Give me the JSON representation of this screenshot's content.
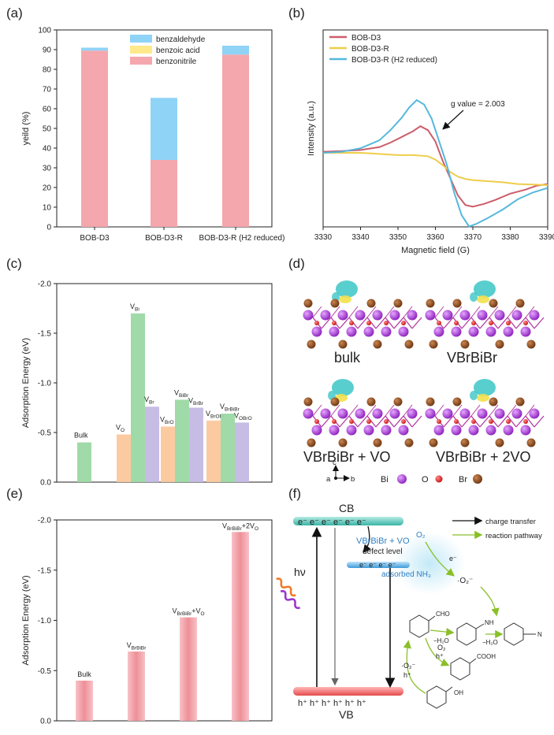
{
  "panels": {
    "a": {
      "label": "(a)"
    },
    "b": {
      "label": "(b)"
    },
    "c": {
      "label": "(c)"
    },
    "d": {
      "label": "(d)"
    },
    "e": {
      "label": "(e)"
    },
    "f": {
      "label": "(f)"
    }
  },
  "chart_data": [
    {
      "id": "a",
      "type": "bar",
      "stacked": true,
      "ylabel": "yeild (%)",
      "ylim": [
        0,
        100
      ],
      "yticks": [
        0,
        10,
        20,
        30,
        40,
        50,
        60,
        70,
        80,
        90,
        100
      ],
      "categories": [
        "BOB-D3",
        "BOB-D3-R",
        "BOB-D3-R (H2 reduced)"
      ],
      "series": [
        {
          "name": "benzonitrile",
          "color": "#f4a7ad",
          "values": [
            89.5,
            34,
            87.5
          ]
        },
        {
          "name": "benzoic acid",
          "color": "#ffe98a",
          "values": [
            0,
            0,
            0
          ]
        },
        {
          "name": "benzaldehyde",
          "color": "#8fd3f7",
          "values": [
            1.5,
            31.5,
            4.5
          ]
        }
      ],
      "legend": "top-center"
    },
    {
      "id": "b",
      "type": "line",
      "xlabel": "Magnetic field (G)",
      "ylabel": "Intensity (a.u.)",
      "xlim": [
        3330,
        3390
      ],
      "xticks": [
        3330,
        3340,
        3350,
        3360,
        3370,
        3380,
        3390
      ],
      "annotation": "g value = 2.003",
      "series": [
        {
          "name": "BOB-D3",
          "color": "#cc5d6b",
          "x": [
            3330,
            3335,
            3340,
            3345,
            3348,
            3351,
            3354,
            3356,
            3358,
            3360,
            3362,
            3364,
            3366,
            3368,
            3370,
            3373,
            3376,
            3380,
            3384,
            3387,
            3390
          ],
          "y": [
            0.52,
            0.53,
            0.55,
            0.6,
            0.68,
            0.78,
            0.88,
            0.97,
            0.9,
            0.7,
            0.35,
            0.05,
            -0.25,
            -0.42,
            -0.45,
            -0.4,
            -0.33,
            -0.22,
            -0.15,
            -0.08,
            -0.05
          ]
        },
        {
          "name": "BOB-D3-R",
          "color": "#eecd4a",
          "x": [
            3330,
            3335,
            3340,
            3345,
            3350,
            3354,
            3358,
            3360,
            3362,
            3364,
            3366,
            3368,
            3370,
            3374,
            3378,
            3382,
            3386,
            3390
          ],
          "y": [
            0.5,
            0.5,
            0.5,
            0.48,
            0.46,
            0.46,
            0.44,
            0.38,
            0.28,
            0.16,
            0.08,
            0.04,
            0.02,
            0.0,
            -0.02,
            -0.05,
            -0.06,
            -0.07
          ]
        },
        {
          "name": "BOB-D3-R (H2 reduced)",
          "color": "#55b8dc",
          "x": [
            3330,
            3335,
            3340,
            3345,
            3348,
            3351,
            3353,
            3355,
            3357,
            3359,
            3361,
            3363,
            3365,
            3367,
            3369,
            3371,
            3374,
            3378,
            3382,
            3386,
            3390
          ],
          "y": [
            0.5,
            0.52,
            0.58,
            0.72,
            0.9,
            1.12,
            1.3,
            1.43,
            1.35,
            1.1,
            0.7,
            0.3,
            -0.2,
            -0.6,
            -0.8,
            -0.75,
            -0.65,
            -0.5,
            -0.32,
            -0.2,
            -0.12
          ]
        }
      ],
      "legend": "top-left"
    },
    {
      "id": "c",
      "type": "bar",
      "ylabel": "Adsorption Energy (eV)",
      "ylim": [
        0,
        -2.0
      ],
      "yticks": [
        0.0,
        -0.5,
        -1.0,
        -1.5,
        -2.0
      ],
      "groups": [
        {
          "bars": [
            {
              "label": "Bulk",
              "value": -0.4,
              "color": "#9bd8a3"
            }
          ]
        },
        {
          "bars": [
            {
              "label": "VO",
              "value": -0.48,
              "color": "#fcc79c"
            },
            {
              "label": "VBi",
              "value": -1.7,
              "color": "#9bd8a3"
            },
            {
              "label": "VBr",
              "value": -0.76,
              "color": "#c4b8e3"
            }
          ]
        },
        {
          "bars": [
            {
              "label": "VBrO",
              "value": -0.56,
              "color": "#fcc79c"
            },
            {
              "label": "VBiBr",
              "value": -0.83,
              "color": "#9bd8a3"
            },
            {
              "label": "VBrBr",
              "value": -0.75,
              "color": "#c4b8e3"
            }
          ]
        },
        {
          "bars": [
            {
              "label": "VBrOBi",
              "value": -0.62,
              "color": "#fcc79c"
            },
            {
              "label": "VBrBiBr",
              "value": -0.69,
              "color": "#9bd8a3"
            },
            {
              "label": "VOBrO",
              "value": -0.6,
              "color": "#c4b8e3"
            }
          ]
        }
      ]
    },
    {
      "id": "e",
      "type": "bar",
      "ylabel": "Adsorption Energy (eV)",
      "ylim": [
        0,
        -2.0
      ],
      "yticks": [
        0.0,
        -0.5,
        -1.0,
        -1.5,
        -2.0
      ],
      "bars": [
        {
          "label": "Bulk",
          "value": -0.4
        },
        {
          "label": "VBrBiBr",
          "value": -0.69
        },
        {
          "label": "VBrBiBr+VO",
          "value": -1.03
        },
        {
          "label": "VBrBiBr+2VO",
          "value": -1.88
        }
      ],
      "color": "#f4a7ad"
    }
  ],
  "panel_d": {
    "structures": [
      "bulk",
      "VBrBiBr",
      "VBrBiBr + VO",
      "VBrBiBr + 2VO"
    ],
    "axes": {
      "c": "c",
      "a": "a",
      "b": "b"
    },
    "legend": [
      {
        "label": "Bi",
        "color": "#a62bd6"
      },
      {
        "label": "O",
        "color": "#e01919"
      },
      {
        "label": "Br",
        "color": "#8a4a1c"
      }
    ]
  },
  "panel_f": {
    "cb": "CB",
    "vb": "VB",
    "electrons": "e⁻ e⁻ e⁻ e⁻ e⁻ e⁻",
    "holes": "h⁺ h⁺ h⁺ h⁺ h⁺ h⁺",
    "hv": "hν",
    "defect_title": "VBrBiBr + VO",
    "defect_level": "defect level",
    "defect_electrons": "e⁻ e⁻ e⁻ e⁻",
    "adsorbed": "adsorbed NH₃",
    "o2": "O₂",
    "e_minus": "e⁻",
    "superoxide": "·O₂⁻",
    "cho": "CHO",
    "nh": "NH",
    "minus_h2o_1": "−H₂O",
    "minus_h2o_2": "−H₂O",
    "o2_hplus": "O₂",
    "hplus_1": "h⁺",
    "cooh": "COOH",
    "superoxide_2": "·O₂⁻",
    "hplus_2": "h⁺",
    "oh": "OH",
    "n": "N",
    "legend_charge": "charge transfer",
    "legend_reaction": "reaction pathway"
  }
}
